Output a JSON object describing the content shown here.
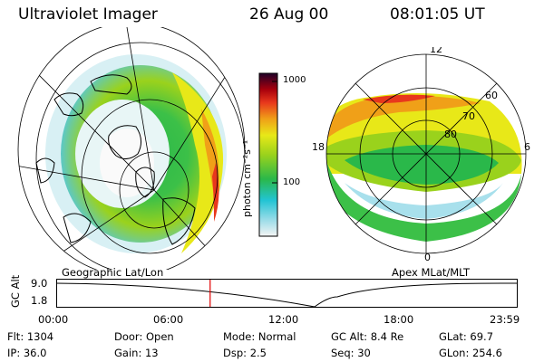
{
  "header": {
    "title": "Ultraviolet Imager",
    "date": "26 Aug 00",
    "time": "08:01:05 UT"
  },
  "left_panel": {
    "caption": "Geographic Lat/Lon"
  },
  "right_panel": {
    "caption": "Apex MLat/MLT",
    "mlt_labels": {
      "top": "12",
      "left": "18",
      "right": "6",
      "bottom": "0"
    },
    "lat_labels": [
      "60",
      "70",
      "80"
    ]
  },
  "colorbar": {
    "unit": "photon cm⁻²s⁻¹",
    "ticks": [
      "1000",
      "100"
    ],
    "scale": "log",
    "colors": [
      "#f4f4f4",
      "#7fd8e8",
      "#22c4d4",
      "#2ab84a",
      "#9ad21c",
      "#e8e818",
      "#f0a018",
      "#e8381c",
      "#a8000c",
      "#200028"
    ]
  },
  "altitude_plot": {
    "ylabel": "GC Alt",
    "yticks": [
      "9.0",
      "1.8"
    ],
    "xticks": [
      "00:00",
      "06:00",
      "12:00",
      "18:00",
      "23:59"
    ],
    "marker_time_hours": 8.02
  },
  "info": {
    "row1": [
      {
        "label": "Flt:",
        "value": "1304"
      },
      {
        "label": "Door:",
        "value": "Open"
      },
      {
        "label": "Mode:",
        "value": "Normal"
      },
      {
        "label": "GC Alt:",
        "value": "8.4 Re"
      },
      {
        "label": "GLat:",
        "value": "69.7"
      }
    ],
    "row2": [
      {
        "label": "IP:",
        "value": "36.0"
      },
      {
        "label": "Gain:",
        "value": "13"
      },
      {
        "label": "Dsp:",
        "value": "2.5"
      },
      {
        "label": "Seq:",
        "value": "30"
      },
      {
        "label": "GLon:",
        "value": "254.6"
      }
    ]
  }
}
